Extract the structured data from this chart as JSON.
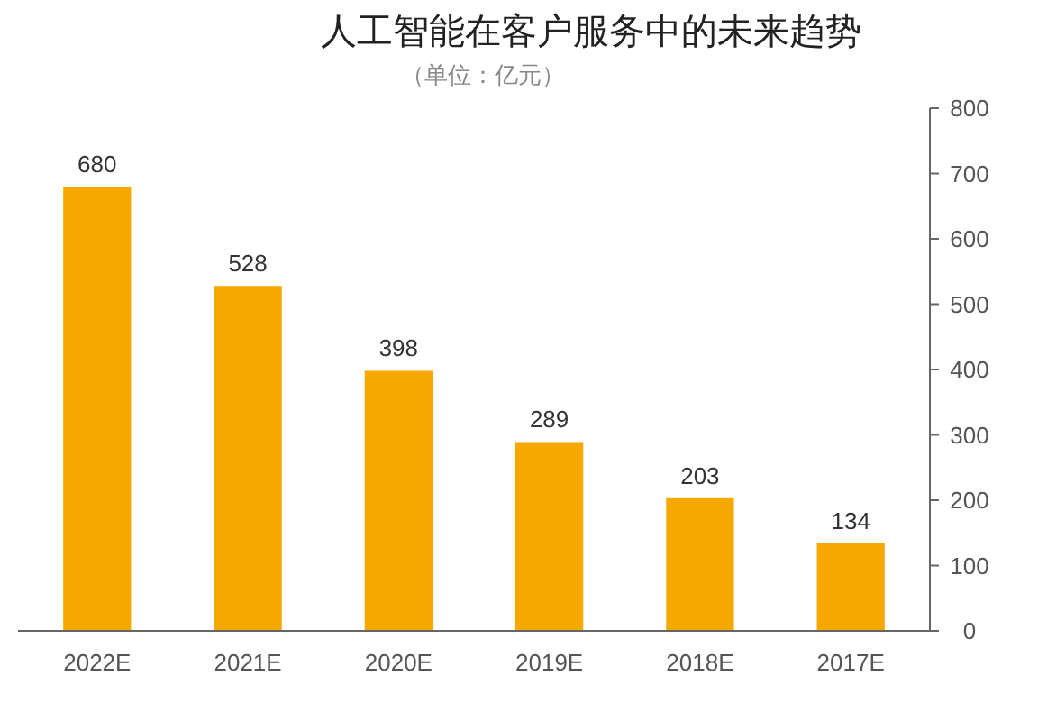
{
  "chart_data": {
    "type": "bar",
    "title": "人工智能在客户服务中的未来趋势",
    "subtitle": "（单位：亿元）",
    "categories": [
      "2022E",
      "2021E",
      "2020E",
      "2019E",
      "2018E",
      "2017E"
    ],
    "values": [
      680,
      528,
      398,
      289,
      203,
      134
    ],
    "color": "#f5a800",
    "ylim": [
      0,
      800
    ],
    "yticks": [
      0,
      100,
      200,
      300,
      400,
      500,
      600,
      700,
      800
    ],
    "grid": false,
    "data_labels": true
  }
}
